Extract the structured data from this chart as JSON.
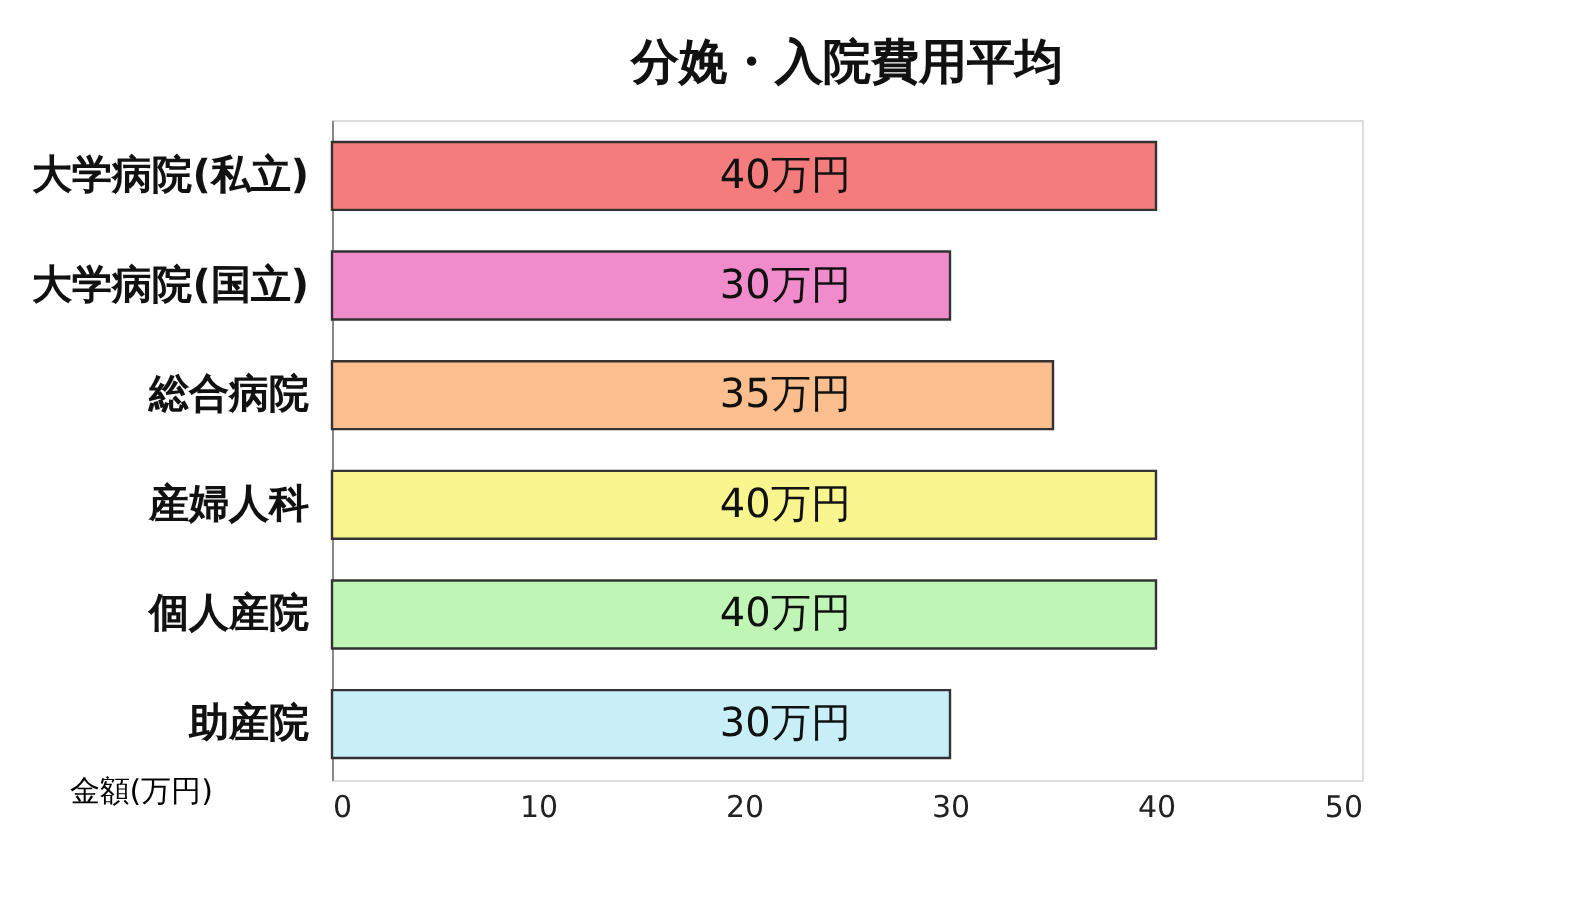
{
  "chart_data": {
    "type": "bar",
    "orientation": "horizontal",
    "title": "分娩・入院費用平均",
    "xlabel": "金額(万円)",
    "categories": [
      "大学病院(私立)",
      "大学病院(国立)",
      "総合病院",
      "産婦人科",
      "個人産院",
      "助産院"
    ],
    "values": [
      40,
      30,
      35,
      40,
      40,
      30
    ],
    "colors": [
      "#f47c7c",
      "#f08ccc",
      "#fbbf8f",
      "#f8f58f",
      "#bff5b5",
      "#c8eef8"
    ],
    "value_labels": [
      "40万円",
      "30万円",
      "35万円",
      "40万円",
      "40万円",
      "30万円"
    ],
    "xlim": [
      0,
      50
    ],
    "xticks": [
      0,
      10,
      20,
      30,
      40,
      50
    ],
    "grid": false
  }
}
